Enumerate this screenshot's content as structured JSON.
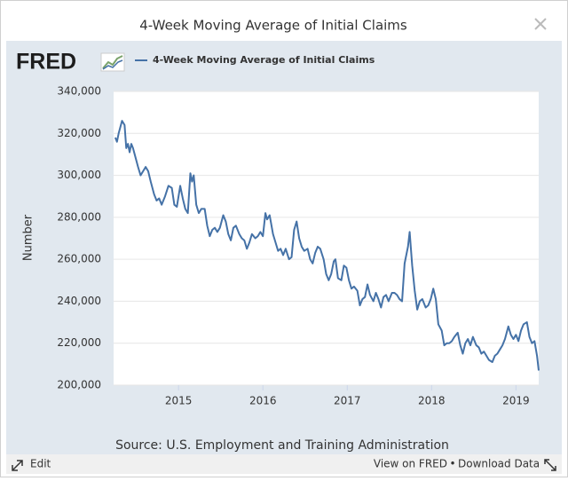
{
  "chart_data": {
    "type": "line",
    "title": "4-Week Moving Average of Initial Claims",
    "logo": "FRED",
    "y_label": "Number",
    "source": "Source: U.S. Employment and Training Administration",
    "footer": {
      "edit": "Edit",
      "view": "View on FRED",
      "separator": "•",
      "download": "Download Data"
    },
    "xlim": [
      2014.23,
      2019.27
    ],
    "xticks": [
      2015,
      2016,
      2017,
      2018,
      2019
    ],
    "ylim": [
      200000,
      340000
    ],
    "yticks": [
      {
        "value": 200000,
        "label": "200,000"
      },
      {
        "value": 220000,
        "label": "220,000"
      },
      {
        "value": 240000,
        "label": "240,000"
      },
      {
        "value": 260000,
        "label": "260,000"
      },
      {
        "value": 280000,
        "label": "280,000"
      },
      {
        "value": 300000,
        "label": "300,000"
      },
      {
        "value": 320000,
        "label": "320,000"
      },
      {
        "value": 340000,
        "label": "340,000"
      }
    ],
    "grid": true,
    "x": [
      2014.25,
      2014.27,
      2014.29,
      2014.33,
      2014.36,
      2014.38,
      2014.4,
      2014.42,
      2014.44,
      2014.46,
      2014.48,
      2014.52,
      2014.55,
      2014.58,
      2014.61,
      2014.64,
      2014.67,
      2014.71,
      2014.74,
      2014.77,
      2014.8,
      2014.84,
      2014.88,
      2014.92,
      2014.95,
      2014.98,
      2015.02,
      2015.05,
      2015.08,
      2015.11,
      2015.14,
      2015.16,
      2015.18,
      2015.21,
      2015.24,
      2015.27,
      2015.31,
      2015.34,
      2015.37,
      2015.4,
      2015.43,
      2015.46,
      2015.49,
      2015.53,
      2015.56,
      2015.59,
      2015.62,
      2015.65,
      2015.68,
      2015.72,
      2015.75,
      2015.78,
      2015.81,
      2015.84,
      2015.87,
      2015.91,
      2015.94,
      2015.97,
      2016.0,
      2016.03,
      2016.05,
      2016.08,
      2016.12,
      2016.15,
      2016.18,
      2016.21,
      2016.24,
      2016.27,
      2016.31,
      2016.34,
      2016.37,
      2016.4,
      2016.43,
      2016.46,
      2016.49,
      2016.53,
      2016.56,
      2016.59,
      2016.62,
      2016.65,
      2016.68,
      2016.72,
      2016.75,
      2016.78,
      2016.81,
      2016.84,
      2016.86,
      2016.89,
      2016.93,
      2016.96,
      2016.99,
      2017.02,
      2017.05,
      2017.08,
      2017.12,
      2017.15,
      2017.18,
      2017.21,
      2017.24,
      2017.27,
      2017.31,
      2017.34,
      2017.37,
      2017.4,
      2017.43,
      2017.46,
      2017.49,
      2017.53,
      2017.56,
      2017.59,
      2017.62,
      2017.65,
      2017.68,
      2017.72,
      2017.74,
      2017.77,
      2017.8,
      2017.83,
      2017.86,
      2017.89,
      2017.93,
      2017.96,
      2017.99,
      2018.02,
      2018.05,
      2018.08,
      2018.12,
      2018.15,
      2018.18,
      2018.21,
      2018.24,
      2018.27,
      2018.31,
      2018.34,
      2018.37,
      2018.4,
      2018.43,
      2018.46,
      2018.49,
      2018.53,
      2018.56,
      2018.59,
      2018.62,
      2018.65,
      2018.68,
      2018.72,
      2018.75,
      2018.78,
      2018.81,
      2018.84,
      2018.87,
      2018.91,
      2018.94,
      2018.97,
      2019.0,
      2019.03,
      2019.06,
      2019.09,
      2019.13,
      2019.16,
      2019.19,
      2019.22,
      2019.25,
      2019.27
    ],
    "series": [
      {
        "name": "4-Week Moving Average of Initial Claims",
        "color": "#4572a7",
        "values": [
          318000,
          316000,
          320000,
          326000,
          324000,
          313000,
          315000,
          311000,
          315000,
          313000,
          310000,
          304000,
          300000,
          302000,
          304000,
          302000,
          297000,
          291000,
          288000,
          289000,
          286000,
          290000,
          295000,
          294000,
          286000,
          285000,
          295000,
          289000,
          284000,
          282000,
          301000,
          297000,
          300000,
          286000,
          282000,
          284000,
          284000,
          276000,
          271000,
          274000,
          275000,
          273000,
          275000,
          281000,
          278000,
          272000,
          269000,
          275000,
          276000,
          272000,
          270000,
          269000,
          265000,
          268000,
          272000,
          270000,
          271000,
          273000,
          271000,
          282000,
          279000,
          281000,
          272000,
          268000,
          264000,
          265000,
          262000,
          265000,
          260000,
          261000,
          274000,
          278000,
          270000,
          266000,
          264000,
          265000,
          260000,
          258000,
          263000,
          266000,
          265000,
          260000,
          253000,
          250000,
          253000,
          259000,
          260000,
          251000,
          250000,
          257000,
          256000,
          250000,
          246000,
          247000,
          245000,
          238000,
          241000,
          242000,
          248000,
          243000,
          240000,
          244000,
          241000,
          237000,
          242000,
          243000,
          240000,
          244000,
          244000,
          243000,
          241000,
          240000,
          258000,
          266000,
          273000,
          257000,
          245000,
          236000,
          240000,
          241000,
          237000,
          238000,
          241000,
          246000,
          241000,
          229000,
          226000,
          219000,
          220000,
          220000,
          221000,
          223000,
          225000,
          219000,
          215000,
          220000,
          222000,
          219000,
          223000,
          219000,
          218000,
          215000,
          216000,
          214000,
          212000,
          211000,
          214000,
          215000,
          217000,
          219000,
          222000,
          228000,
          224000,
          222000,
          224000,
          221000,
          226000,
          229000,
          230000,
          223000,
          220000,
          221000,
          214000,
          207000
        ]
      }
    ]
  }
}
